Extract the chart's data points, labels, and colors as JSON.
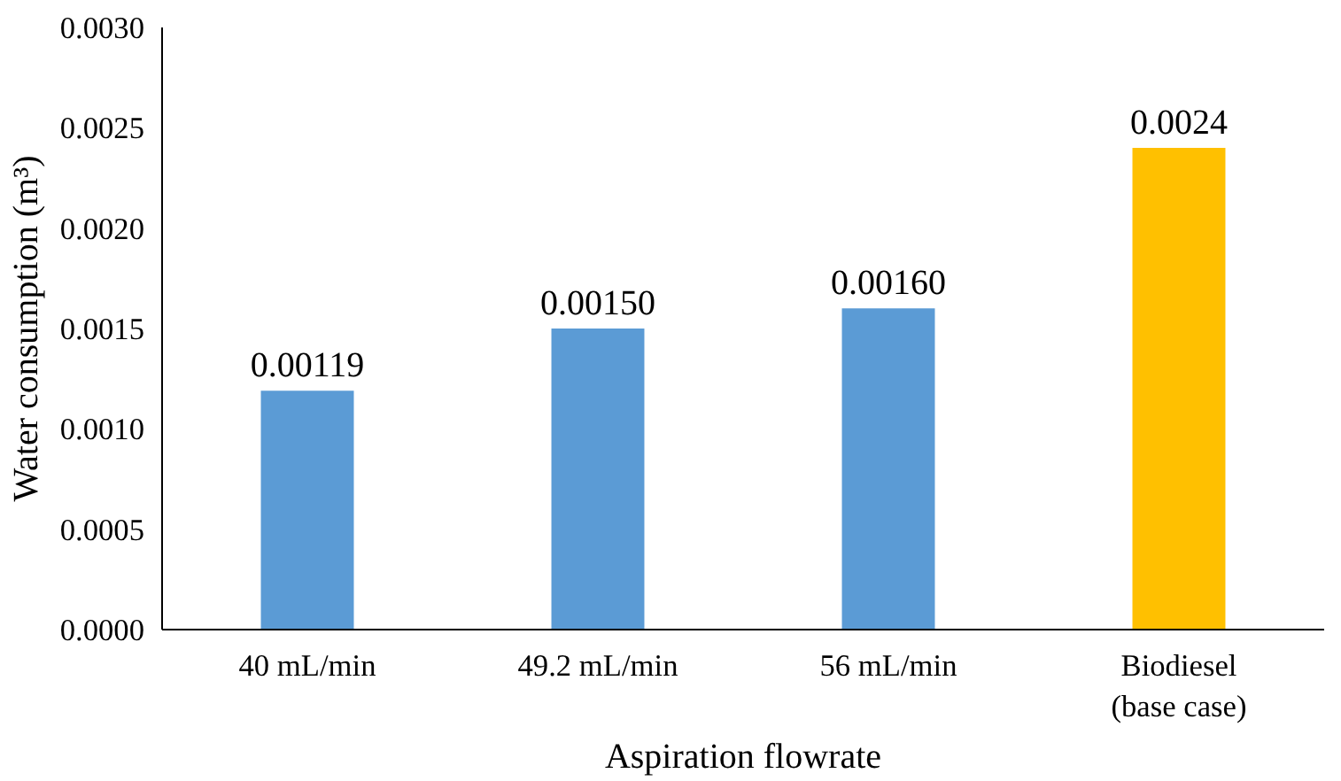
{
  "chart_data": {
    "type": "bar",
    "xlabel": "Aspiration flowrate",
    "ylabel": "Water consumption (m³)",
    "categories": [
      "40 mL/min",
      "49.2 mL/min",
      "56 mL/min",
      "Biodiesel (base case)"
    ],
    "values": [
      0.00119,
      0.0015,
      0.0016,
      0.0024
    ],
    "colors": [
      "#5b9bd5",
      "#5b9bd5",
      "#5b9bd5",
      "#ffc000"
    ],
    "value_labels": [
      "0.00119",
      "0.00150",
      "0.00160",
      "0.0024"
    ],
    "ylim": [
      0,
      0.003
    ],
    "yticks": [
      {
        "value": 0,
        "label": "0.0000"
      },
      {
        "value": 0.0005,
        "label": "0.0005"
      },
      {
        "value": 0.001,
        "label": "0.0010"
      },
      {
        "value": 0.0015,
        "label": "0.0015"
      },
      {
        "value": 0.002,
        "label": "0.0020"
      },
      {
        "value": 0.0025,
        "label": "0.0025"
      },
      {
        "value": 0.003,
        "label": "0.0030"
      }
    ],
    "grid": false
  }
}
